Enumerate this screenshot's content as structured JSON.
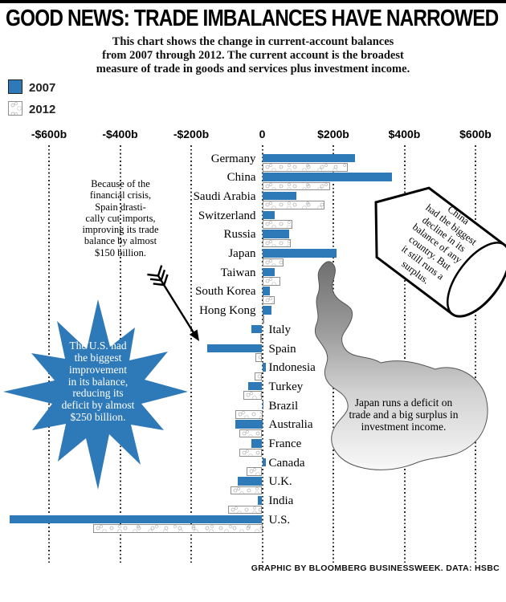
{
  "title": "GOOD NEWS: TRADE IMBALANCES HAVE NARROWED",
  "subtitle": "This chart shows the change in current-account balances\nfrom 2007 through 2012. The current account is the broadest\nmeasure of trade in goods and services plus investment income.",
  "legend": {
    "y2007": "2007",
    "y2012": "2012"
  },
  "colors": {
    "bar_blue": "#2e79b8",
    "texture_border": "#8f8f8f"
  },
  "chart_data": {
    "type": "bar",
    "orientation": "horizontal",
    "unit": "billions of US dollars",
    "categories": [
      "Germany",
      "China",
      "Saudi Arabia",
      "Switzerland",
      "Russia",
      "Japan",
      "Taiwan",
      "South Korea",
      "Hong Kong",
      "Italy",
      "Spain",
      "Indonesia",
      "Turkey",
      "Brazil",
      "Australia",
      "France",
      "Canada",
      "U.K.",
      "India",
      "U.S."
    ],
    "series": [
      {
        "name": "2007",
        "style": "solid-blue",
        "color": "#2e79b8",
        "values": [
          260,
          365,
          95,
          35,
          75,
          210,
          35,
          22,
          25,
          -30,
          -155,
          10,
          -40,
          2,
          -75,
          -30,
          10,
          -70,
          -12,
          -710
        ]
      },
      {
        "name": "2012",
        "style": "textured-white",
        "values": [
          240,
          190,
          175,
          85,
          80,
          60,
          50,
          36,
          5,
          -6,
          -20,
          -22,
          -52,
          -75,
          -65,
          -65,
          -45,
          -90,
          -95,
          -475
        ]
      }
    ],
    "axis": {
      "ticks": [
        {
          "label": "-$600b",
          "value": -600
        },
        {
          "label": "-$400b",
          "value": -400
        },
        {
          "label": "-$200b",
          "value": -200
        },
        {
          "label": "0",
          "value": 0
        },
        {
          "label": "$200b",
          "value": 200
        },
        {
          "label": "$400b",
          "value": 400
        },
        {
          "label": "$600b",
          "value": 600
        }
      ],
      "range": [
        -720,
        650
      ],
      "gridlines": "dotted-vertical"
    },
    "legend_position": "top-left"
  },
  "annotations": {
    "spain_note": {
      "text": "Because of the\nfinancial crisis,\nSpain drasti-\ncally cut imports,\nimproving its trade\nbalance by almost\n$150 billion."
    },
    "us_star": {
      "text": "The U.S. had\nthe biggest\nimprovement\nin its balance,\nreducing its\ndeficit by almost\n$250 billion."
    },
    "china_can": {
      "text": "China\nhad the biggest\ndecline in its\nbalance of any\ncountry. But\nit still runs a\nsurplus."
    },
    "japan_smoke": {
      "text": "Japan runs a deficit on\ntrade and a big surplus in\ninvestment income."
    }
  },
  "footer": "GRAPHIC BY BLOOMBERG BUSINESSWEEK. DATA: HSBC"
}
